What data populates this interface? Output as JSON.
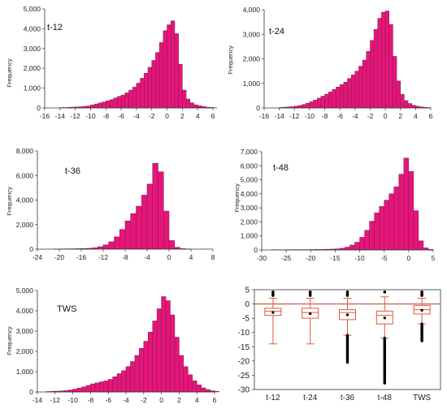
{
  "colors": {
    "bar_fill": "#e6157a",
    "bar_edge": "#7a1f4d",
    "box_edge": "#e05a3a",
    "zero_line": "#c0392b",
    "outlier": "#000000"
  },
  "chart_data": [
    {
      "type": "bar",
      "title": "t-12",
      "ylabel": "Frequency",
      "xlim": [
        -16,
        6
      ],
      "ylim": [
        0,
        5000
      ],
      "xticks": [
        "-16",
        "-14",
        "-12",
        "-10",
        "-8",
        "-6",
        "-4",
        "-2",
        "0",
        "2",
        "4",
        "6"
      ],
      "yticks": [
        "0",
        "1,000",
        "2,000",
        "3,000",
        "4,000",
        "5,000"
      ],
      "bin_start": -14,
      "bin_width": 0.5,
      "values": [
        20,
        20,
        30,
        40,
        50,
        60,
        80,
        100,
        150,
        200,
        250,
        300,
        360,
        420,
        500,
        580,
        650,
        760,
        900,
        1050,
        1250,
        1500,
        1750,
        2050,
        2400,
        2800,
        3300,
        3900,
        4200,
        4400,
        3750,
        2200,
        900,
        450,
        260,
        160,
        110,
        70,
        40,
        25,
        15
      ]
    },
    {
      "type": "bar",
      "title": "t-24",
      "ylabel": "Frequency",
      "xlim": [
        -16,
        6
      ],
      "ylim": [
        0,
        4000
      ],
      "xticks": [
        "-16",
        "-14",
        "-12",
        "-10",
        "-8",
        "-6",
        "-4",
        "-2",
        "0",
        "2",
        "4",
        "6"
      ],
      "yticks": [
        "0",
        "1,000",
        "2,000",
        "3,000",
        "4,000"
      ],
      "bin_start": -14,
      "bin_width": 0.5,
      "values": [
        20,
        30,
        40,
        50,
        70,
        100,
        140,
        190,
        250,
        320,
        400,
        480,
        560,
        650,
        750,
        850,
        950,
        1050,
        1200,
        1350,
        1500,
        1700,
        1950,
        2300,
        2750,
        3200,
        3650,
        3900,
        3950,
        3400,
        2100,
        1100,
        550,
        300,
        180,
        110,
        70,
        40,
        25,
        15
      ]
    },
    {
      "type": "bar",
      "title": "t-36",
      "ylabel": "Frequency",
      "xlim": [
        -24,
        8
      ],
      "ylim": [
        0,
        8000
      ],
      "xticks": [
        "-24",
        "-20",
        "-16",
        "-12",
        "-8",
        "-4",
        "0",
        "4",
        "8"
      ],
      "yticks": [
        "0",
        "2,000",
        "4,000",
        "6,000",
        "8,000"
      ],
      "bin_start": -21,
      "bin_width": 1,
      "values": [
        15,
        20,
        25,
        30,
        40,
        50,
        70,
        110,
        200,
        350,
        600,
        1000,
        1600,
        2300,
        2900,
        3500,
        4400,
        5300,
        7000,
        6300,
        3100,
        700,
        150,
        40,
        15
      ]
    },
    {
      "type": "bar",
      "title": "t-48",
      "ylabel": "Frequency",
      "xlim": [
        -30,
        5
      ],
      "ylim": [
        0,
        7000
      ],
      "xticks": [
        "-30",
        "-25",
        "-20",
        "-15",
        "-10",
        "-5",
        "0",
        "5"
      ],
      "yticks": [
        "0",
        "1,000",
        "2,000",
        "3,000",
        "4,000",
        "5,000",
        "6,000",
        "7,000"
      ],
      "bin_start": -28,
      "bin_width": 1,
      "values": [
        20,
        15,
        15,
        20,
        20,
        20,
        25,
        25,
        30,
        35,
        40,
        50,
        60,
        80,
        120,
        200,
        350,
        550,
        900,
        1400,
        2050,
        2650,
        3100,
        3550,
        4000,
        4500,
        5400,
        6550,
        5600,
        2800,
        650,
        150,
        40
      ]
    },
    {
      "type": "bar",
      "title": "TWS",
      "ylabel": "Frequency",
      "xlim": [
        -14,
        6
      ],
      "ylim": [
        0,
        5000
      ],
      "xticks": [
        "-14",
        "-12",
        "-10",
        "-8",
        "-6",
        "-4",
        "-2",
        "0",
        "2",
        "4",
        "6"
      ],
      "yticks": [
        "0",
        "1,000",
        "2,000",
        "3,000",
        "4,000",
        "5,000"
      ],
      "bin_start": -13,
      "bin_width": 0.5,
      "values": [
        20,
        30,
        40,
        50,
        70,
        100,
        140,
        190,
        250,
        320,
        400,
        450,
        500,
        550,
        620,
        750,
        900,
        1050,
        1250,
        1500,
        1800,
        2150,
        2500,
        2950,
        3500,
        4100,
        4700,
        4500,
        3800,
        2700,
        1800,
        1250,
        850,
        550,
        350,
        200,
        120,
        60,
        30
      ]
    },
    {
      "type": "box",
      "categories": [
        "t-12",
        "t-24",
        "t-36",
        "t-48",
        "TWS"
      ],
      "ylim": [
        -30,
        5
      ],
      "yticks": [
        "5",
        "0",
        "-5",
        "-10",
        "-15",
        "-20",
        "-25",
        "-30"
      ],
      "boxes": [
        {
          "label": "t-12",
          "whisker_low": -14,
          "q1": -4,
          "median": -2.5,
          "mean": -3,
          "q3": -1.5,
          "whisker_high": 2,
          "outliers_high": [
            3,
            3.6,
            4.2
          ]
        },
        {
          "label": "t-24",
          "whisker_low": -14,
          "q1": -5,
          "median": -3,
          "mean": -3.4,
          "q3": -1.5,
          "whisker_high": 2,
          "outliers_high": [
            3,
            3.6,
            4.2
          ]
        },
        {
          "label": "t-36",
          "whisker_low": -11,
          "q1": -5.5,
          "median": -3,
          "mean": -3.8,
          "q3": -2,
          "whisker_high": 2,
          "outliers_low_range": [
            -20.5,
            -11
          ],
          "outliers_high": [
            3,
            3.6,
            4.2
          ]
        },
        {
          "label": "t-48",
          "whisker_low": -12,
          "q1": -7,
          "median": -4,
          "mean": -4.9,
          "q3": -2.5,
          "whisker_high": 2.5,
          "outliers_low_range": [
            -28,
            -12
          ],
          "outliers_high": [
            4.2
          ]
        },
        {
          "label": "TWS",
          "whisker_low": -7,
          "q1": -3.5,
          "median": -2,
          "mean": -2.2,
          "q3": -0.5,
          "whisker_high": 2,
          "outliers_low_range": [
            -13,
            -7
          ],
          "outliers_high": [
            3,
            3.6,
            4.2
          ]
        }
      ]
    }
  ]
}
